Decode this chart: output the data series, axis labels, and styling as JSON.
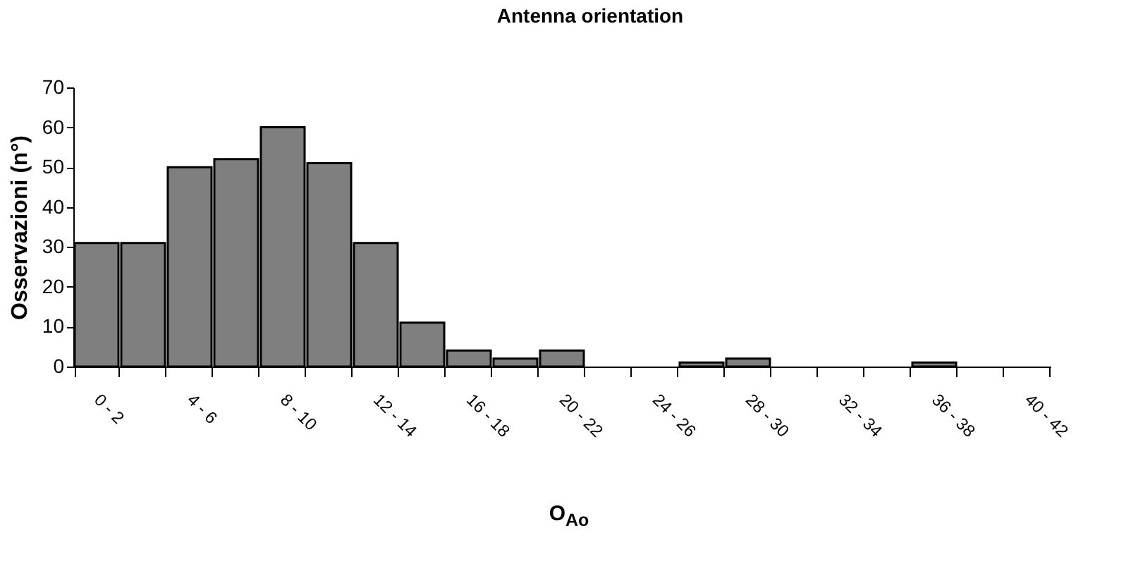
{
  "chart_data": {
    "type": "bar",
    "title": "Antenna orientation",
    "xlabel": "O$_{Ao}$",
    "ylabel": "Osservazioni (n°)",
    "categories": [
      "0 - 2",
      null,
      "4 - 6",
      null,
      "8 - 10",
      null,
      "12 - 14",
      null,
      "16 - 18",
      null,
      "20 - 22",
      null,
      "24 - 26",
      null,
      "28 - 30",
      null,
      "32 - 34",
      null,
      "36 - 38",
      null,
      "40 - 42"
    ],
    "values": [
      31,
      31,
      50,
      52,
      60,
      51,
      31,
      11,
      4,
      2,
      4,
      0,
      0,
      1,
      2,
      0,
      0,
      0,
      1,
      0,
      0
    ],
    "color": "#7f7f7f",
    "ylim": [
      0,
      70
    ],
    "yticks": [
      0,
      10,
      20,
      30,
      40,
      50,
      60,
      70
    ],
    "grid": false
  }
}
